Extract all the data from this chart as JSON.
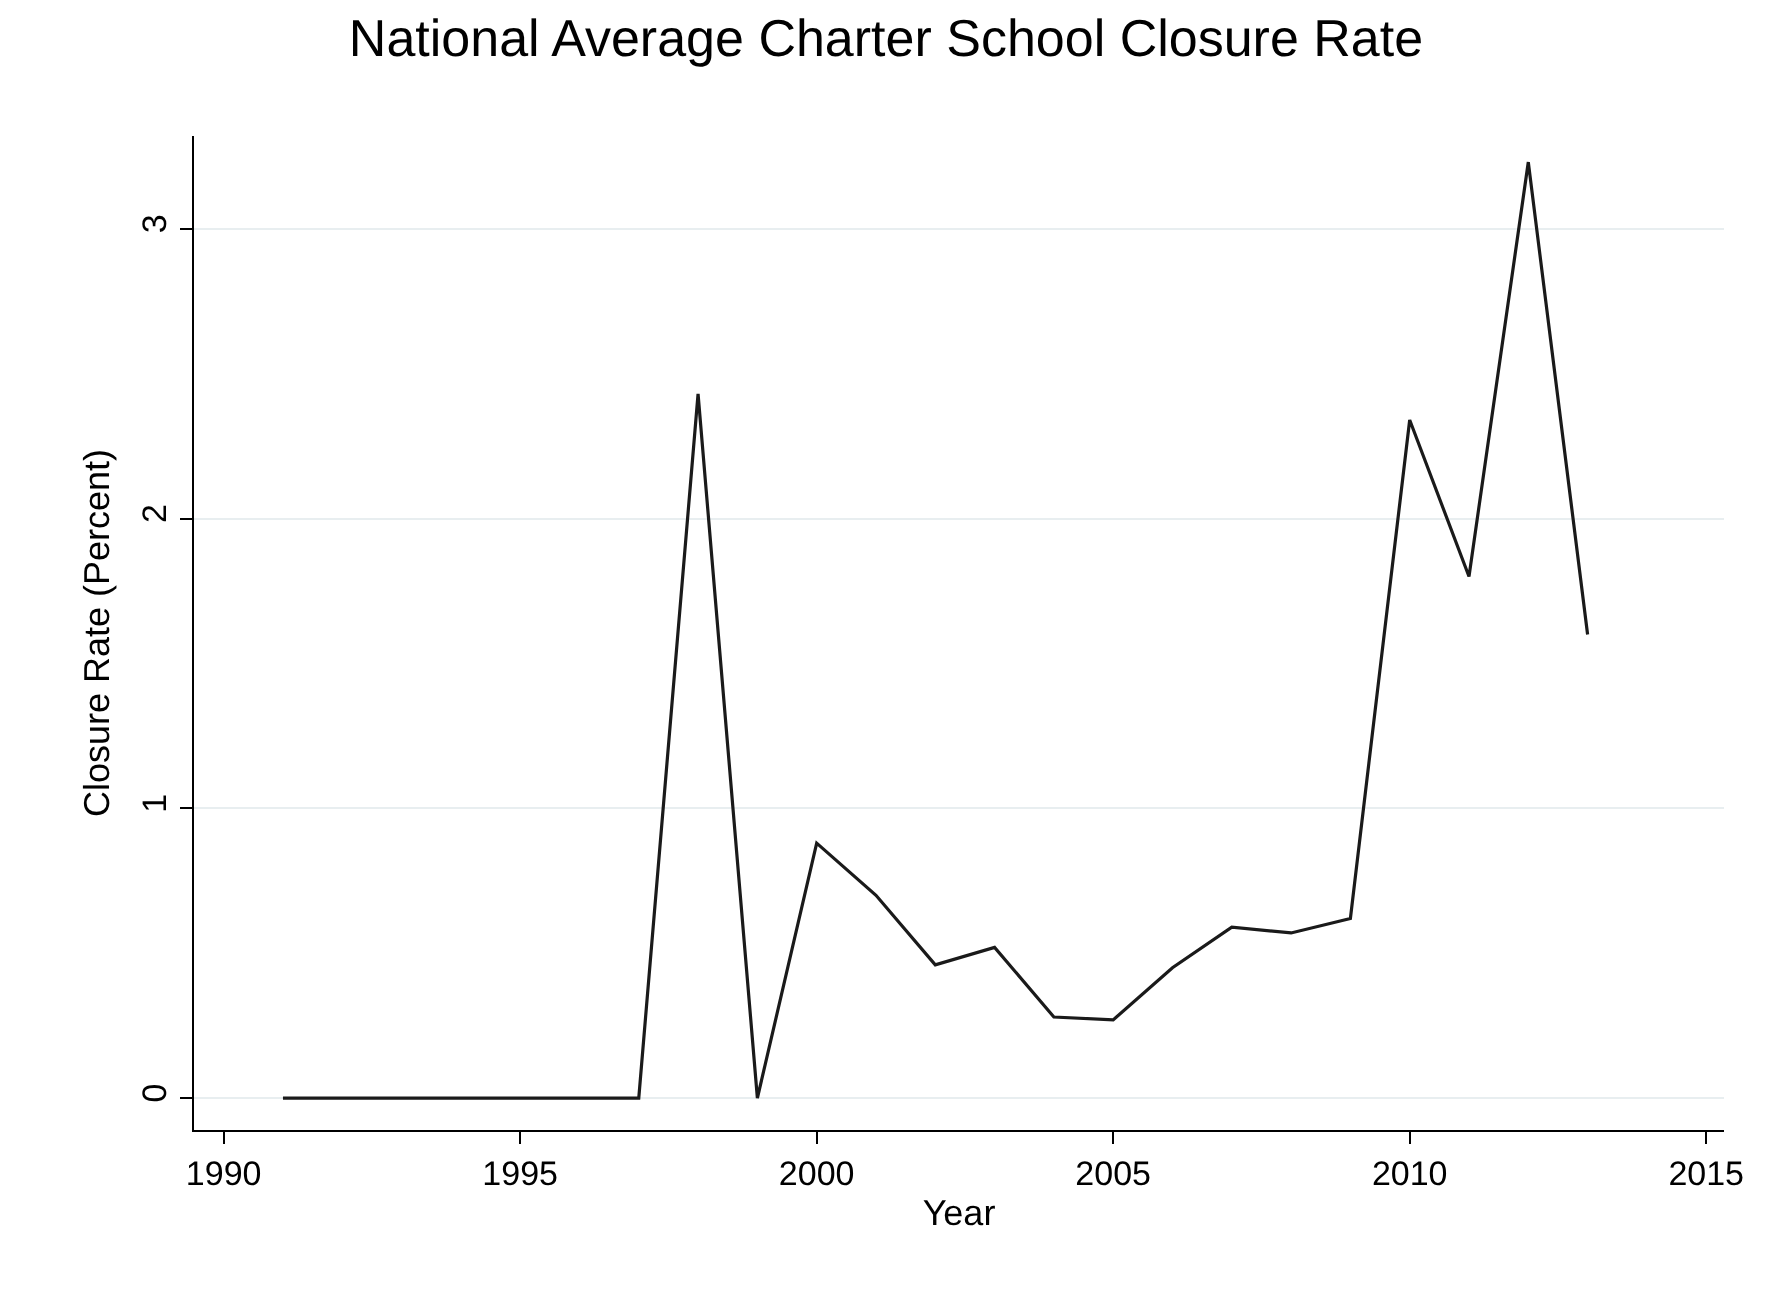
{
  "chart_data": {
    "type": "line",
    "title": "National Average Charter School Closure Rate",
    "xlabel": "Year",
    "ylabel": "Closure Rate (Percent)",
    "x": [
      1991,
      1992,
      1993,
      1994,
      1995,
      1996,
      1997,
      1998,
      1999,
      2000,
      2001,
      2002,
      2003,
      2004,
      2005,
      2006,
      2007,
      2008,
      2009,
      2010,
      2011,
      2012,
      2013
    ],
    "series": [
      {
        "color": "#1a1a1a",
        "values": [
          0,
          0,
          0,
          0,
          0,
          0,
          0,
          2.43,
          0,
          0.88,
          0.7,
          0.46,
          0.52,
          0.28,
          0.27,
          0.45,
          0.59,
          0.57,
          0.62,
          2.34,
          1.8,
          3.23,
          1.6
        ]
      }
    ],
    "xlim": [
      1989.5,
      2015.3
    ],
    "ylim": [
      -0.11,
      3.32
    ],
    "xticks": [
      1990,
      1995,
      2000,
      2005,
      2010,
      2015
    ],
    "yticks": [
      0,
      1,
      2,
      3
    ],
    "grid": "y",
    "legend": false,
    "marker": "none",
    "line_style": "solid"
  }
}
